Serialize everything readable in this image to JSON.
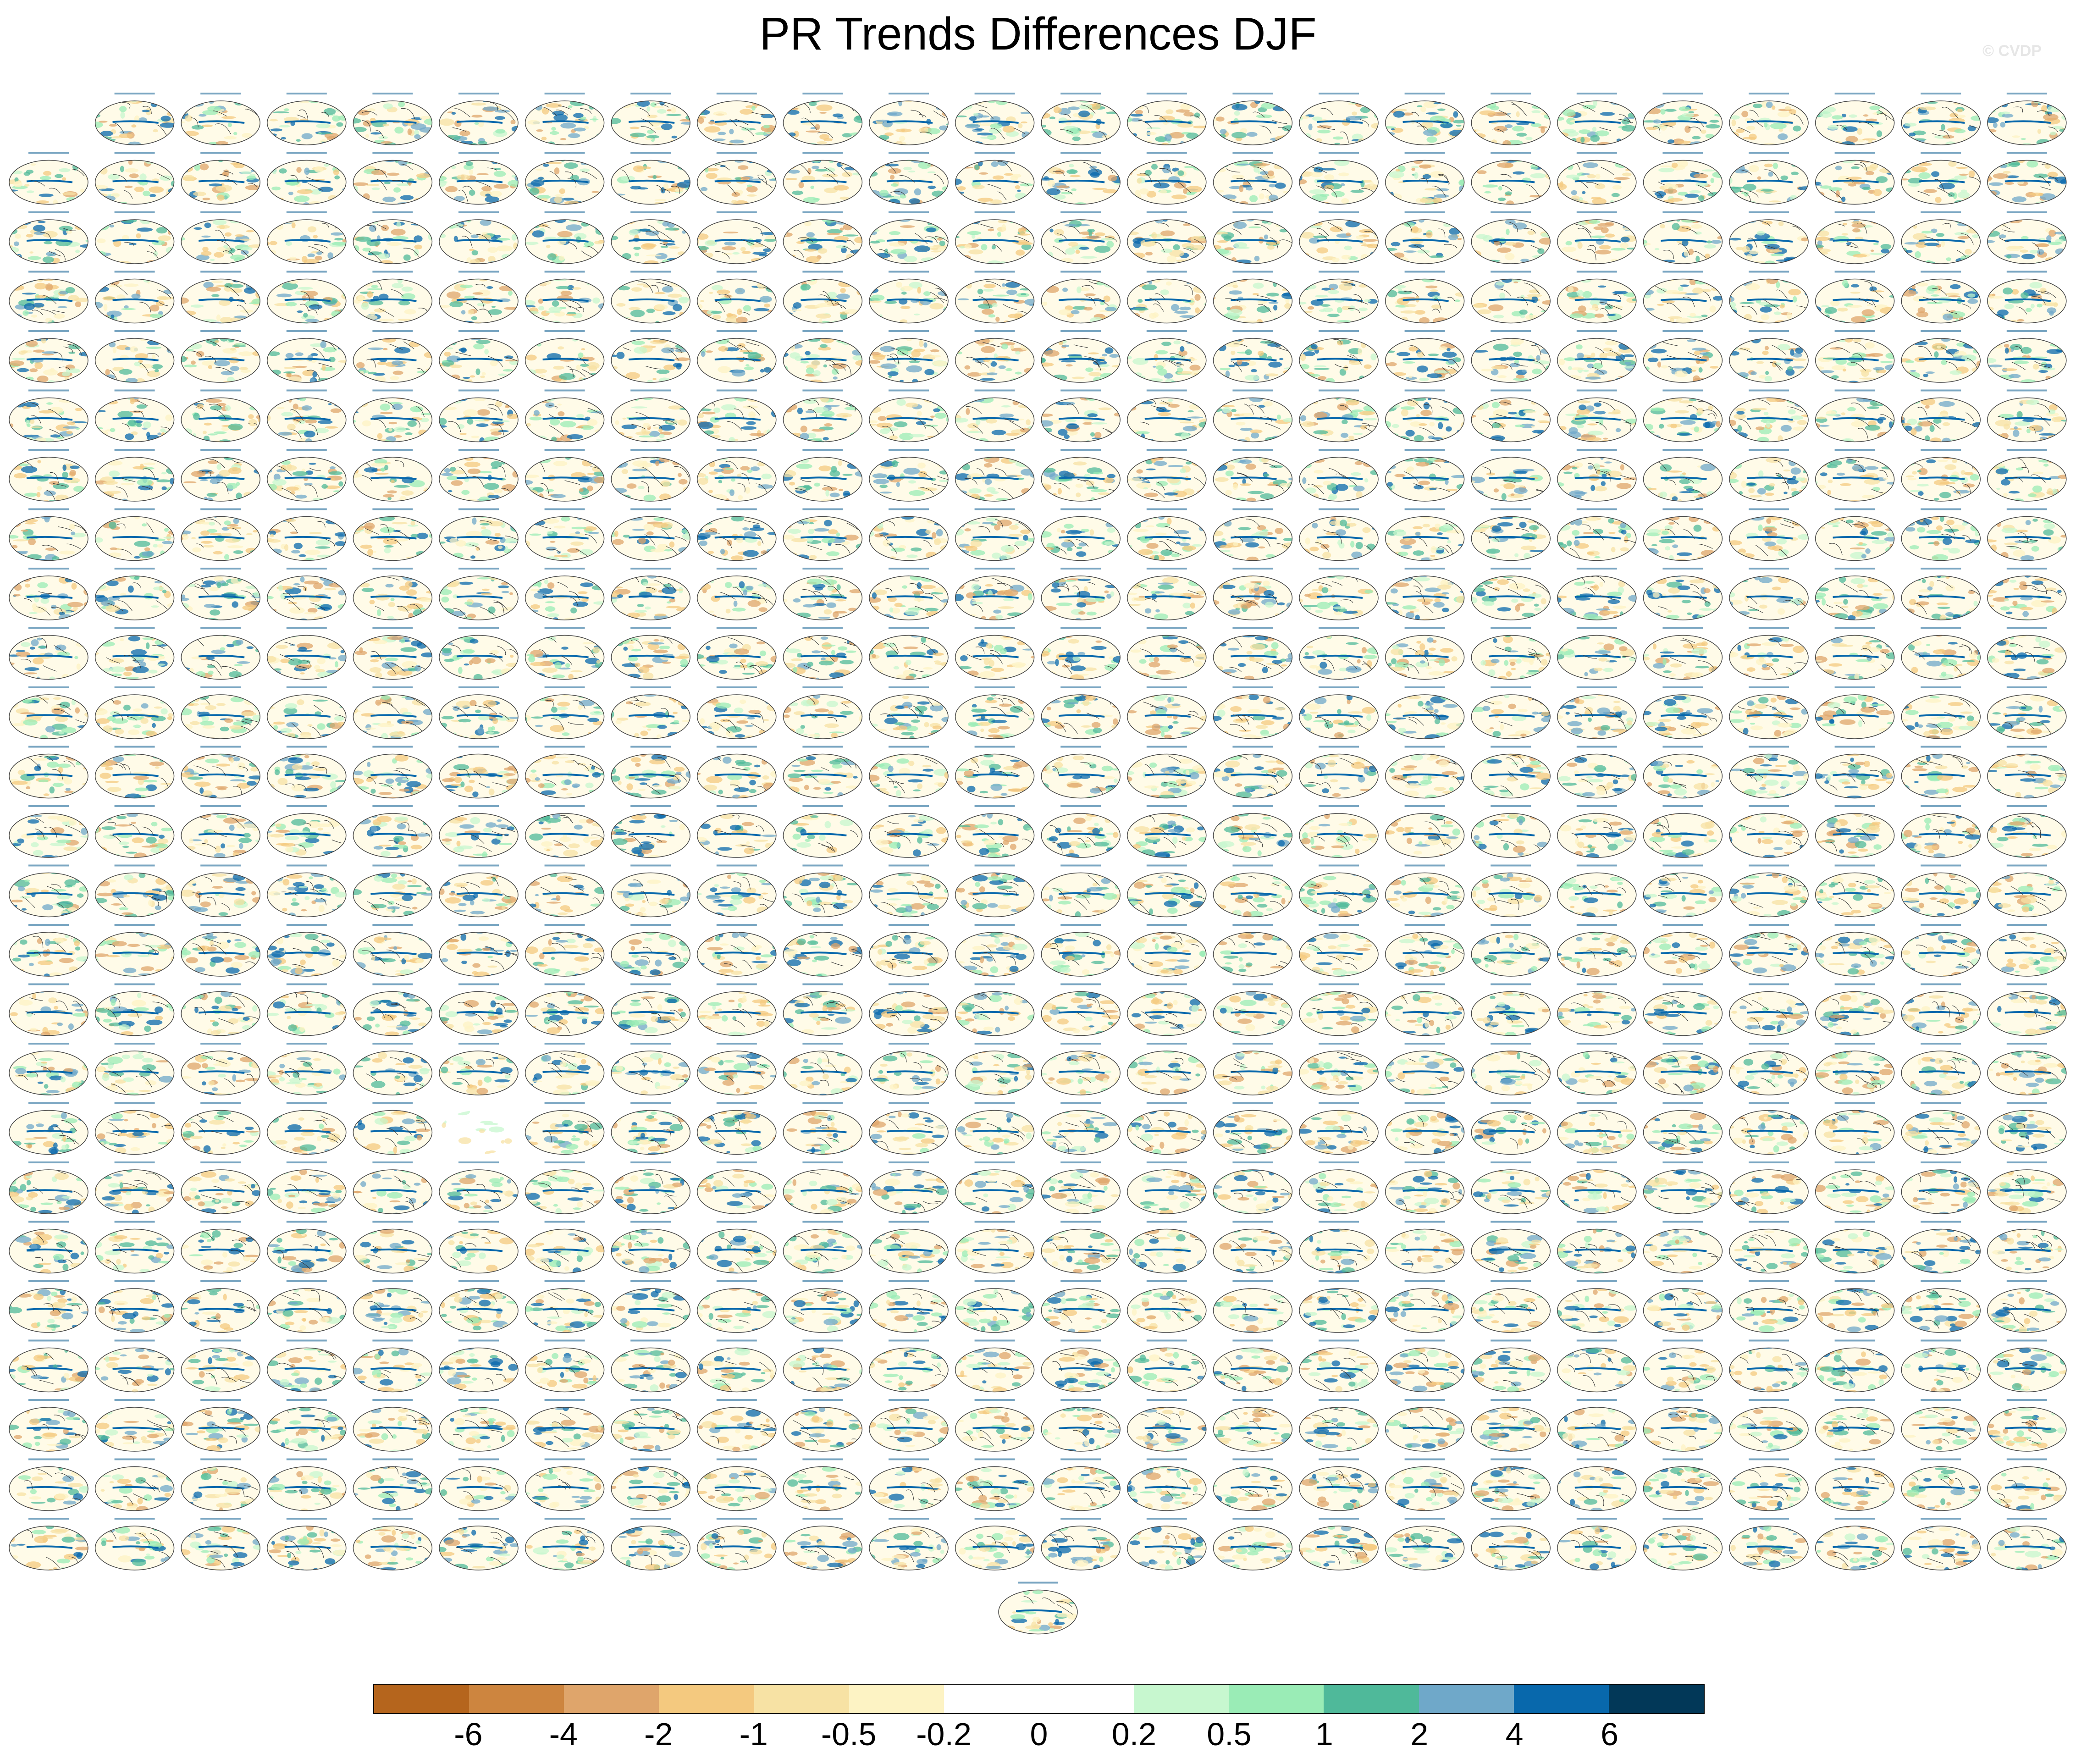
{
  "figure": {
    "title": "PR Trends Differences DJF",
    "watermark": "© CVDP",
    "panel_grid": {
      "rows_full": 25,
      "cols": 24,
      "first_row_missing_leading": 1,
      "trailing_centered_panels": 1,
      "blank_panels": [
        {
          "row": 17,
          "col": 5
        }
      ]
    }
  },
  "colorbar": {
    "colors": [
      "#b5651d",
      "#cd853f",
      "#dfa56b",
      "#f4c97f",
      "#f7e2a4",
      "#fdf3c4",
      "#ffffff",
      "#ffffff",
      "#c7f7cf",
      "#9aecb6",
      "#4fb99a",
      "#6fa8c9",
      "#0868ac",
      "#023858"
    ],
    "labels": [
      "-6",
      "-4",
      "-2",
      "-1",
      "-0.5",
      "-0.2",
      "0",
      "0.2",
      "0.5",
      "1",
      "2",
      "4",
      "6"
    ]
  }
}
